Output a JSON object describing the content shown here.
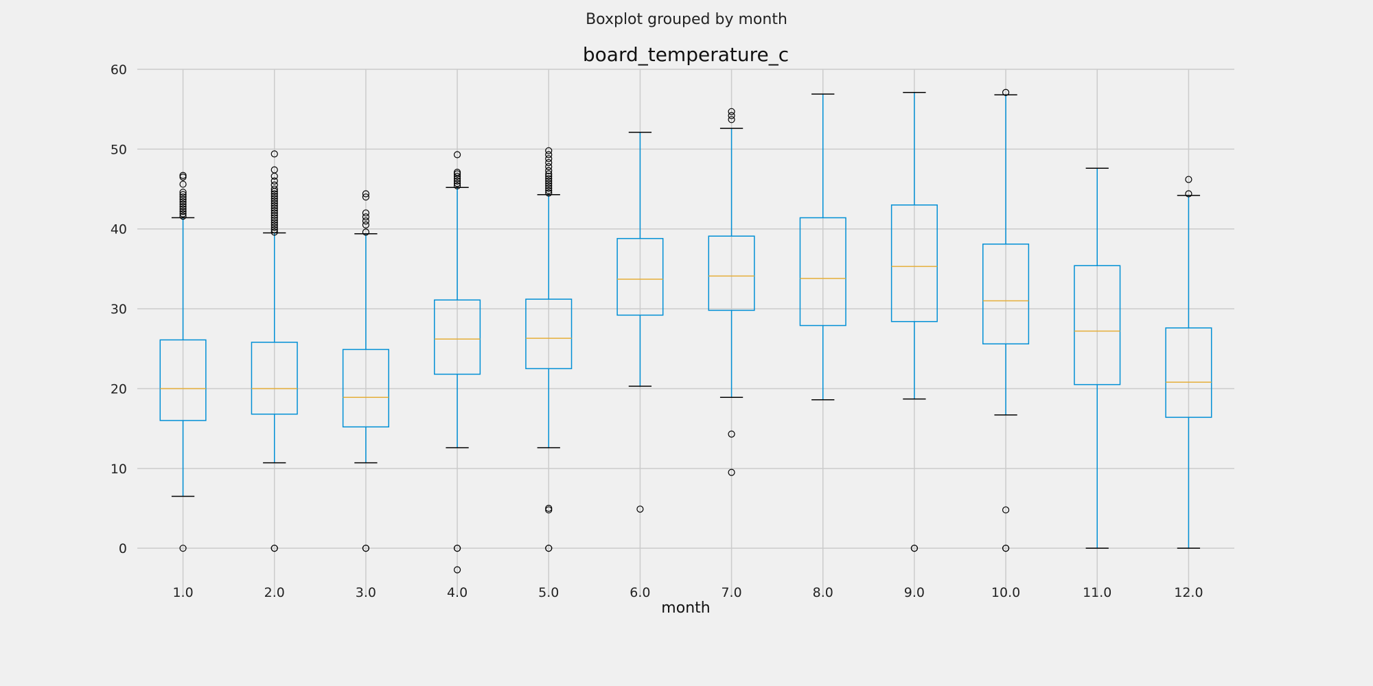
{
  "figure": {
    "suptitle": "Boxplot grouped by month",
    "title": "board_temperature_c",
    "xlabel": "month"
  },
  "colors": {
    "background": "#f0f0f0",
    "grid": "#cbcbcb",
    "box": "#008fd5",
    "median": "#e5ae38",
    "whisker_cap": "#000000",
    "flier": "#000000"
  },
  "chart_data": {
    "type": "boxplot",
    "title": "board_temperature_c",
    "suptitle": "Boxplot grouped by month",
    "xlabel": "month",
    "ylabel": "",
    "ylim": [
      -6,
      60
    ],
    "yticks": [
      0,
      10,
      20,
      30,
      40,
      50,
      60
    ],
    "grid": true,
    "categories": [
      "1.0",
      "2.0",
      "3.0",
      "4.0",
      "5.0",
      "6.0",
      "7.0",
      "8.0",
      "9.0",
      "10.0",
      "11.0",
      "12.0"
    ],
    "boxes": [
      {
        "category": "1.0",
        "whisker_low": 6.5,
        "q1": 16.0,
        "median": 20.0,
        "q3": 26.1,
        "whisker_high": 41.4,
        "fliers": [
          0,
          41.6,
          41.9,
          42.2,
          42.5,
          42.8,
          43.1,
          43.4,
          43.7,
          44.0,
          44.3,
          44.6,
          45.6,
          46.5,
          46.7
        ]
      },
      {
        "category": "2.0",
        "whisker_low": 10.7,
        "q1": 16.8,
        "median": 20.0,
        "q3": 25.8,
        "whisker_high": 39.5,
        "fliers": [
          0,
          0,
          39.6,
          39.9,
          40.2,
          40.5,
          40.8,
          41.1,
          41.4,
          41.7,
          42.0,
          42.3,
          42.6,
          42.9,
          43.2,
          43.5,
          43.8,
          44.1,
          44.4,
          44.7,
          45.0,
          45.5,
          46.0,
          46.6,
          47.4,
          49.4
        ]
      },
      {
        "category": "3.0",
        "whisker_low": 10.7,
        "q1": 15.2,
        "median": 18.9,
        "q3": 24.9,
        "whisker_high": 39.4,
        "fliers": [
          0,
          0,
          39.6,
          40.5,
          41.0,
          41.5,
          42.0,
          44.0,
          44.4
        ]
      },
      {
        "category": "4.0",
        "whisker_low": 12.6,
        "q1": 21.8,
        "median": 26.2,
        "q3": 31.1,
        "whisker_high": 45.2,
        "fliers": [
          -2.7,
          0,
          0,
          45.4,
          45.7,
          46.0,
          46.3,
          46.6,
          46.9,
          47.1,
          49.3
        ]
      },
      {
        "category": "5.0",
        "whisker_low": 12.6,
        "q1": 22.5,
        "median": 26.3,
        "q3": 31.2,
        "whisker_high": 44.3,
        "fliers": [
          0,
          0,
          4.8,
          5.0,
          44.5,
          44.8,
          45.1,
          45.4,
          45.7,
          46.0,
          46.3,
          46.6,
          46.9,
          47.3,
          47.8,
          48.3,
          48.8,
          49.3,
          49.8
        ]
      },
      {
        "category": "6.0",
        "whisker_low": 20.3,
        "q1": 29.2,
        "median": 33.7,
        "q3": 38.8,
        "whisker_high": 52.1,
        "fliers": [
          4.9
        ]
      },
      {
        "category": "7.0",
        "whisker_low": 18.9,
        "q1": 29.8,
        "median": 34.1,
        "q3": 39.1,
        "whisker_high": 52.6,
        "fliers": [
          9.5,
          14.3,
          53.7,
          54.2,
          54.7
        ]
      },
      {
        "category": "8.0",
        "whisker_low": 18.6,
        "q1": 27.9,
        "median": 33.8,
        "q3": 41.4,
        "whisker_high": 56.9,
        "fliers": []
      },
      {
        "category": "9.0",
        "whisker_low": 18.7,
        "q1": 28.4,
        "median": 35.3,
        "q3": 43.0,
        "whisker_high": 57.1,
        "fliers": [
          0,
          0
        ]
      },
      {
        "category": "10.0",
        "whisker_low": 16.7,
        "q1": 25.6,
        "median": 31.0,
        "q3": 38.1,
        "whisker_high": 56.8,
        "fliers": [
          0,
          0,
          4.8,
          57.1
        ]
      },
      {
        "category": "11.0",
        "whisker_low": 0.0,
        "q1": 20.5,
        "median": 27.2,
        "q3": 35.4,
        "whisker_high": 47.6,
        "fliers": []
      },
      {
        "category": "12.0",
        "whisker_low": 0.0,
        "q1": 16.4,
        "median": 20.8,
        "q3": 27.6,
        "whisker_high": 44.2,
        "fliers": [
          44.4,
          46.2
        ]
      }
    ]
  }
}
